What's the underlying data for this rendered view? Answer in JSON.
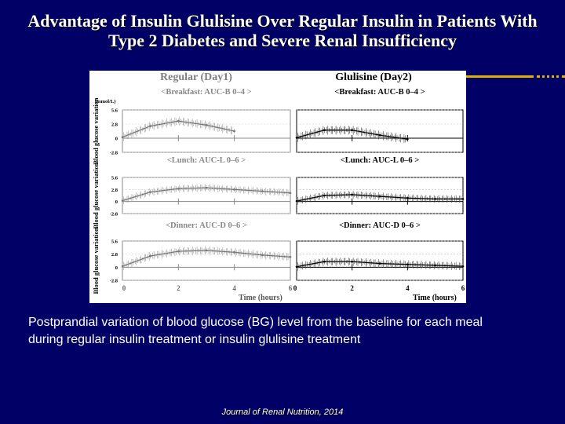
{
  "slide": {
    "title_line1": "Advantage of Insulin Glulisine Over Regular Insulin in Patients With",
    "title_line2": "Type 2 Diabetes and Severe Renal Insufficiency",
    "caption_line1": "Postprandial variation of blood glucose (BG) level from the baseline for each meal",
    "caption_line2": "during regular insulin treatment  or insulin glulisine treatment",
    "source": "Journal of Renal Nutrition, 2014",
    "accent_color": "#e0b000",
    "background_color": "#000066"
  },
  "chart_data": {
    "type": "line",
    "column_headers": [
      "Regular (Day1)",
      "Glulisine (Day2)"
    ],
    "unit_label": "(mmol/L)",
    "ylabel": "Blood glucose variation",
    "xlabel": "Time (hours)",
    "xlim": [
      0,
      6
    ],
    "ylim": [
      -2.8,
      5.6
    ],
    "x_ticks": [
      "0",
      "2",
      "4",
      "6"
    ],
    "y_ticks": [
      "5.6",
      "2.8",
      "0",
      "-2.8"
    ],
    "panels": [
      {
        "label": "<Breakfast: AUC-B 0–4 >",
        "treatment": "Regular",
        "meal": "Breakfast",
        "x": [
          0,
          1,
          2,
          3,
          4
        ],
        "y": [
          0.2,
          2.4,
          3.4,
          2.6,
          1.4
        ]
      },
      {
        "label": "<Breakfast: AUC-B 0–4 >",
        "treatment": "Glulisine",
        "meal": "Breakfast",
        "x": [
          0,
          1,
          2,
          3,
          4
        ],
        "y": [
          0.1,
          1.6,
          1.6,
          0.6,
          -0.2
        ]
      },
      {
        "label": "<Lunch: AUC-L 0–6 >",
        "treatment": "Regular",
        "meal": "Lunch",
        "x": [
          0,
          1,
          2,
          3,
          4,
          5,
          6
        ],
        "y": [
          0.2,
          2.2,
          3.0,
          3.2,
          2.8,
          2.4,
          2.0
        ]
      },
      {
        "label": "<Lunch: AUC-L 0–6 >",
        "treatment": "Glulisine",
        "meal": "Lunch",
        "x": [
          0,
          1,
          2,
          3,
          4,
          5,
          6
        ],
        "y": [
          0.1,
          1.4,
          1.6,
          1.2,
          0.8,
          0.6,
          0.6
        ]
      },
      {
        "label": "<Dinner: AUC-D 0–6 >",
        "treatment": "Regular",
        "meal": "Dinner",
        "x": [
          0,
          1,
          2,
          3,
          4,
          5,
          6
        ],
        "y": [
          0.2,
          2.4,
          3.4,
          3.6,
          3.2,
          2.6,
          2.2
        ]
      },
      {
        "label": "<Dinner: AUC-D 0–6 >",
        "treatment": "Glulisine",
        "meal": "Dinner",
        "x": [
          0,
          1,
          2,
          3,
          4,
          5,
          6
        ],
        "y": [
          0.1,
          1.2,
          1.2,
          0.8,
          0.6,
          0.4,
          0.2
        ]
      }
    ]
  }
}
